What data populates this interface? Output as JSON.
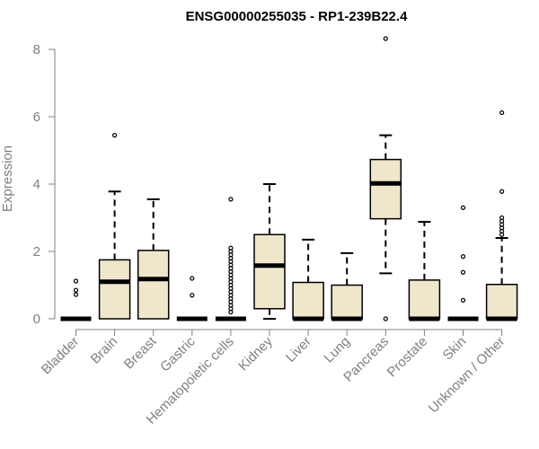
{
  "chart_data": {
    "type": "boxplot",
    "title": "ENSG00000255035 - RP1-239B22.4",
    "xlabel": "",
    "ylabel": "Expression",
    "ylim": [
      0,
      8
    ],
    "yticks": [
      "0",
      "2",
      "4",
      "6",
      "8"
    ],
    "grid": false,
    "box_fill": "#efe6cc",
    "categories": [
      "Bladder",
      "Brain",
      "Breast",
      "Gastric",
      "Hematopoietic cells",
      "Kidney",
      "Liver",
      "Lung",
      "Pancreas",
      "Prostate",
      "Skin",
      "Unknown / Other"
    ],
    "boxes": [
      {
        "min": 0,
        "q1": 0,
        "median": 0,
        "q3": 0,
        "max": 0,
        "outliers": [
          0.72,
          0.85,
          1.12
        ]
      },
      {
        "min": 0,
        "q1": 0,
        "median": 1.1,
        "q3": 1.75,
        "max": 3.78,
        "outliers": [
          5.45
        ]
      },
      {
        "min": 0,
        "q1": 0,
        "median": 1.18,
        "q3": 2.03,
        "max": 3.55,
        "outliers": []
      },
      {
        "min": 0,
        "q1": 0,
        "median": 0,
        "q3": 0,
        "max": 0,
        "outliers": [
          0.7,
          1.2
        ]
      },
      {
        "min": 0,
        "q1": 0,
        "median": 0,
        "q3": 0,
        "max": 0,
        "outliers": [
          0.2,
          0.3,
          0.4,
          0.5,
          0.6,
          0.7,
          0.8,
          0.9,
          1.0,
          1.1,
          1.2,
          1.3,
          1.4,
          1.5,
          1.6,
          1.7,
          1.8,
          1.9,
          2.0,
          2.1,
          3.55
        ]
      },
      {
        "min": 0,
        "q1": 0.3,
        "median": 1.58,
        "q3": 2.5,
        "max": 4.0,
        "outliers": []
      },
      {
        "min": 0,
        "q1": 0,
        "median": 0,
        "q3": 1.08,
        "max": 2.35,
        "outliers": []
      },
      {
        "min": 0,
        "q1": 0,
        "median": 0,
        "q3": 1.0,
        "max": 1.95,
        "outliers": []
      },
      {
        "min": 1.35,
        "q1": 2.97,
        "median": 4.02,
        "q3": 4.73,
        "max": 5.45,
        "outliers": [
          0,
          8.32
        ]
      },
      {
        "min": 0,
        "q1": 0,
        "median": 0,
        "q3": 1.15,
        "max": 2.88,
        "outliers": []
      },
      {
        "min": 0,
        "q1": 0,
        "median": 0,
        "q3": 0,
        "max": 0,
        "outliers": [
          0.55,
          1.38,
          1.85,
          3.3
        ]
      },
      {
        "min": 0,
        "q1": 0,
        "median": 0,
        "q3": 1.02,
        "max": 2.4,
        "outliers": [
          2.5,
          2.6,
          2.7,
          2.8,
          2.9,
          3.0,
          3.78,
          6.12
        ]
      }
    ]
  }
}
